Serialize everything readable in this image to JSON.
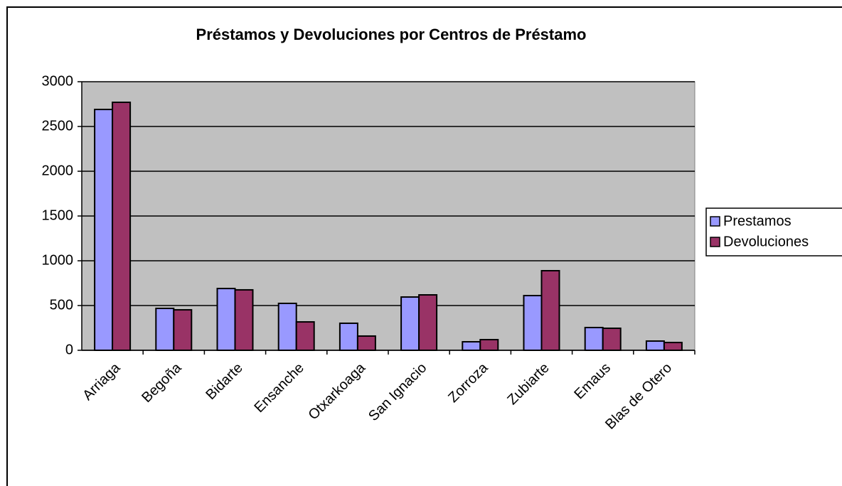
{
  "chart_data": {
    "type": "bar",
    "title": "Préstamos y Devoluciones por Centros de Préstamo",
    "categories": [
      "Arriaga",
      "Begoña",
      "Bidarte",
      "Ensanche",
      "Otxarkoaga",
      "San Ignacio",
      "Zorroza",
      "Zubiarte",
      "Emaus",
      "Blas de Otero"
    ],
    "series": [
      {
        "name": "Prestamos",
        "color": "#9999ff",
        "values": [
          2690,
          468,
          690,
          524,
          302,
          595,
          95,
          611,
          254,
          103
        ]
      },
      {
        "name": "Devoluciones",
        "color": "#993366",
        "values": [
          2770,
          452,
          675,
          317,
          159,
          619,
          119,
          889,
          246,
          87
        ]
      }
    ],
    "ylim": [
      0,
      3000
    ],
    "yticks": [
      0,
      500,
      1000,
      1500,
      2000,
      2500,
      3000
    ],
    "grid": true,
    "legend": "right"
  }
}
